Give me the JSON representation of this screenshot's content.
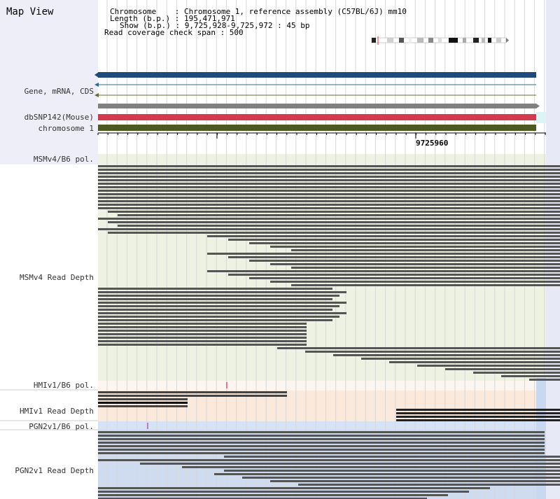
{
  "map_view": {
    "title": "Map View"
  },
  "info": {
    "chromosome_label": "Chromosome    : Chromosome 1, reference assembly (C57BL/6J) mm10",
    "length_label": "Length (b.p.) : 195,471,971",
    "show_label": "Show (b.p.) : 9,725,928-9,725,972 : 45 bp",
    "coverage_label": "Read coverage check span : 500"
  },
  "tracks": {
    "gene": "Gene, mRNA, CDS",
    "dbsnp": "dbSNP142(Mouse)",
    "chromosome": "chromosome 1",
    "msmv4_pol": "MSMv4/B6 pol.",
    "msmv4_depth": "MSMv4 Read Depth",
    "hmiv1_pol": "HMIv1/B6 pol.",
    "hmiv1_depth": "HMIv1 Read Depth",
    "pgn2v1_pol": "PGN2v1/B6 pol.",
    "pgn2v1_depth": "PGN2v1 Read Depth"
  },
  "ruler": {
    "position_label": "9725960"
  },
  "colors": {
    "gene_bar": "#1f4a7c",
    "dbsnp_bar": "#d43a4e",
    "chromosome_bar": "#4b5a22",
    "msm_bg": "#eef2e2",
    "hmi_bg": "#fbe9dc",
    "pgn_bg": "#cfdcf0",
    "read": "#555555"
  }
}
